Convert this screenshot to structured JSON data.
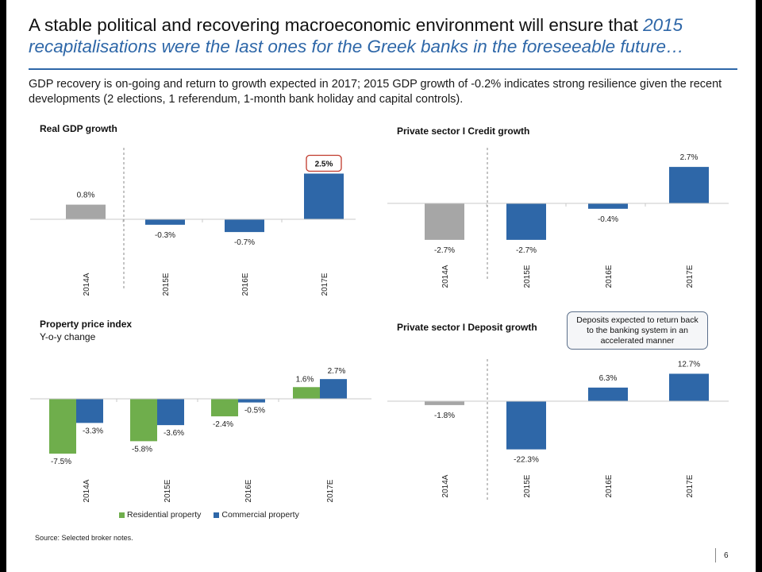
{
  "slide": {
    "title_main": "A stable political and recovering macroeconomic environment will ensure that ",
    "title_highlight": "2015 recapitalisations were the last ones for the Greek banks in the foreseeable future…",
    "subtitle": "GDP recovery is on-going and return to growth expected in 2017; 2015 GDP growth of -0.2% indicates strong resilience given the recent developments (2 elections, 1 referendum, 1-month bank holiday and capital controls).",
    "source": "Source: Selected broker notes.",
    "page_number": "6",
    "callout": "Deposits expected to return back to the banking system in an accelerated manner"
  },
  "colors": {
    "actual": "#a6a6a6",
    "forecast": "#2e67a8",
    "residential": "#6fae4c",
    "commercial": "#2e67a8",
    "highlight_box": "#c0392b"
  },
  "chart_data": [
    {
      "type": "bar",
      "title": "Real GDP growth",
      "categories": [
        "2014A",
        "2015E",
        "2016E",
        "2017E"
      ],
      "values": [
        0.8,
        -0.3,
        -0.7,
        2.5
      ],
      "labels": [
        "0.8%",
        "-0.3%",
        "-0.7%",
        "2.5%"
      ],
      "highlighted": "2.5%"
    },
    {
      "type": "bar",
      "title": "Private sector I Credit growth",
      "categories": [
        "2014A",
        "2015E",
        "2016E",
        "2017E"
      ],
      "values": [
        -2.7,
        -2.7,
        -0.4,
        2.7
      ],
      "labels": [
        "-2.7%",
        "-2.7%",
        "-0.4%",
        "2.7%"
      ]
    },
    {
      "type": "bar",
      "title": "Property price index",
      "subtitle": "Y-o-y change",
      "categories": [
        "2014A",
        "2015E",
        "2016E",
        "2017E"
      ],
      "series": [
        {
          "name": "Residential property",
          "values": [
            -7.5,
            -5.8,
            -2.4,
            1.6
          ],
          "labels": [
            "-7.5%",
            "-5.8%",
            "-2.4%",
            "1.6%"
          ]
        },
        {
          "name": "Commercial property",
          "values": [
            -3.3,
            -3.6,
            -0.5,
            2.7
          ],
          "labels": [
            "-3.3%",
            "-3.6%",
            "-0.5%",
            "2.7%"
          ]
        }
      ]
    },
    {
      "type": "bar",
      "title": "Private sector I Deposit growth",
      "categories": [
        "2014A",
        "2015E",
        "2016E",
        "2017E"
      ],
      "values": [
        -1.8,
        -22.3,
        6.3,
        12.7
      ],
      "labels": [
        "-1.8%",
        "-22.3%",
        "6.3%",
        "12.7%"
      ]
    }
  ]
}
